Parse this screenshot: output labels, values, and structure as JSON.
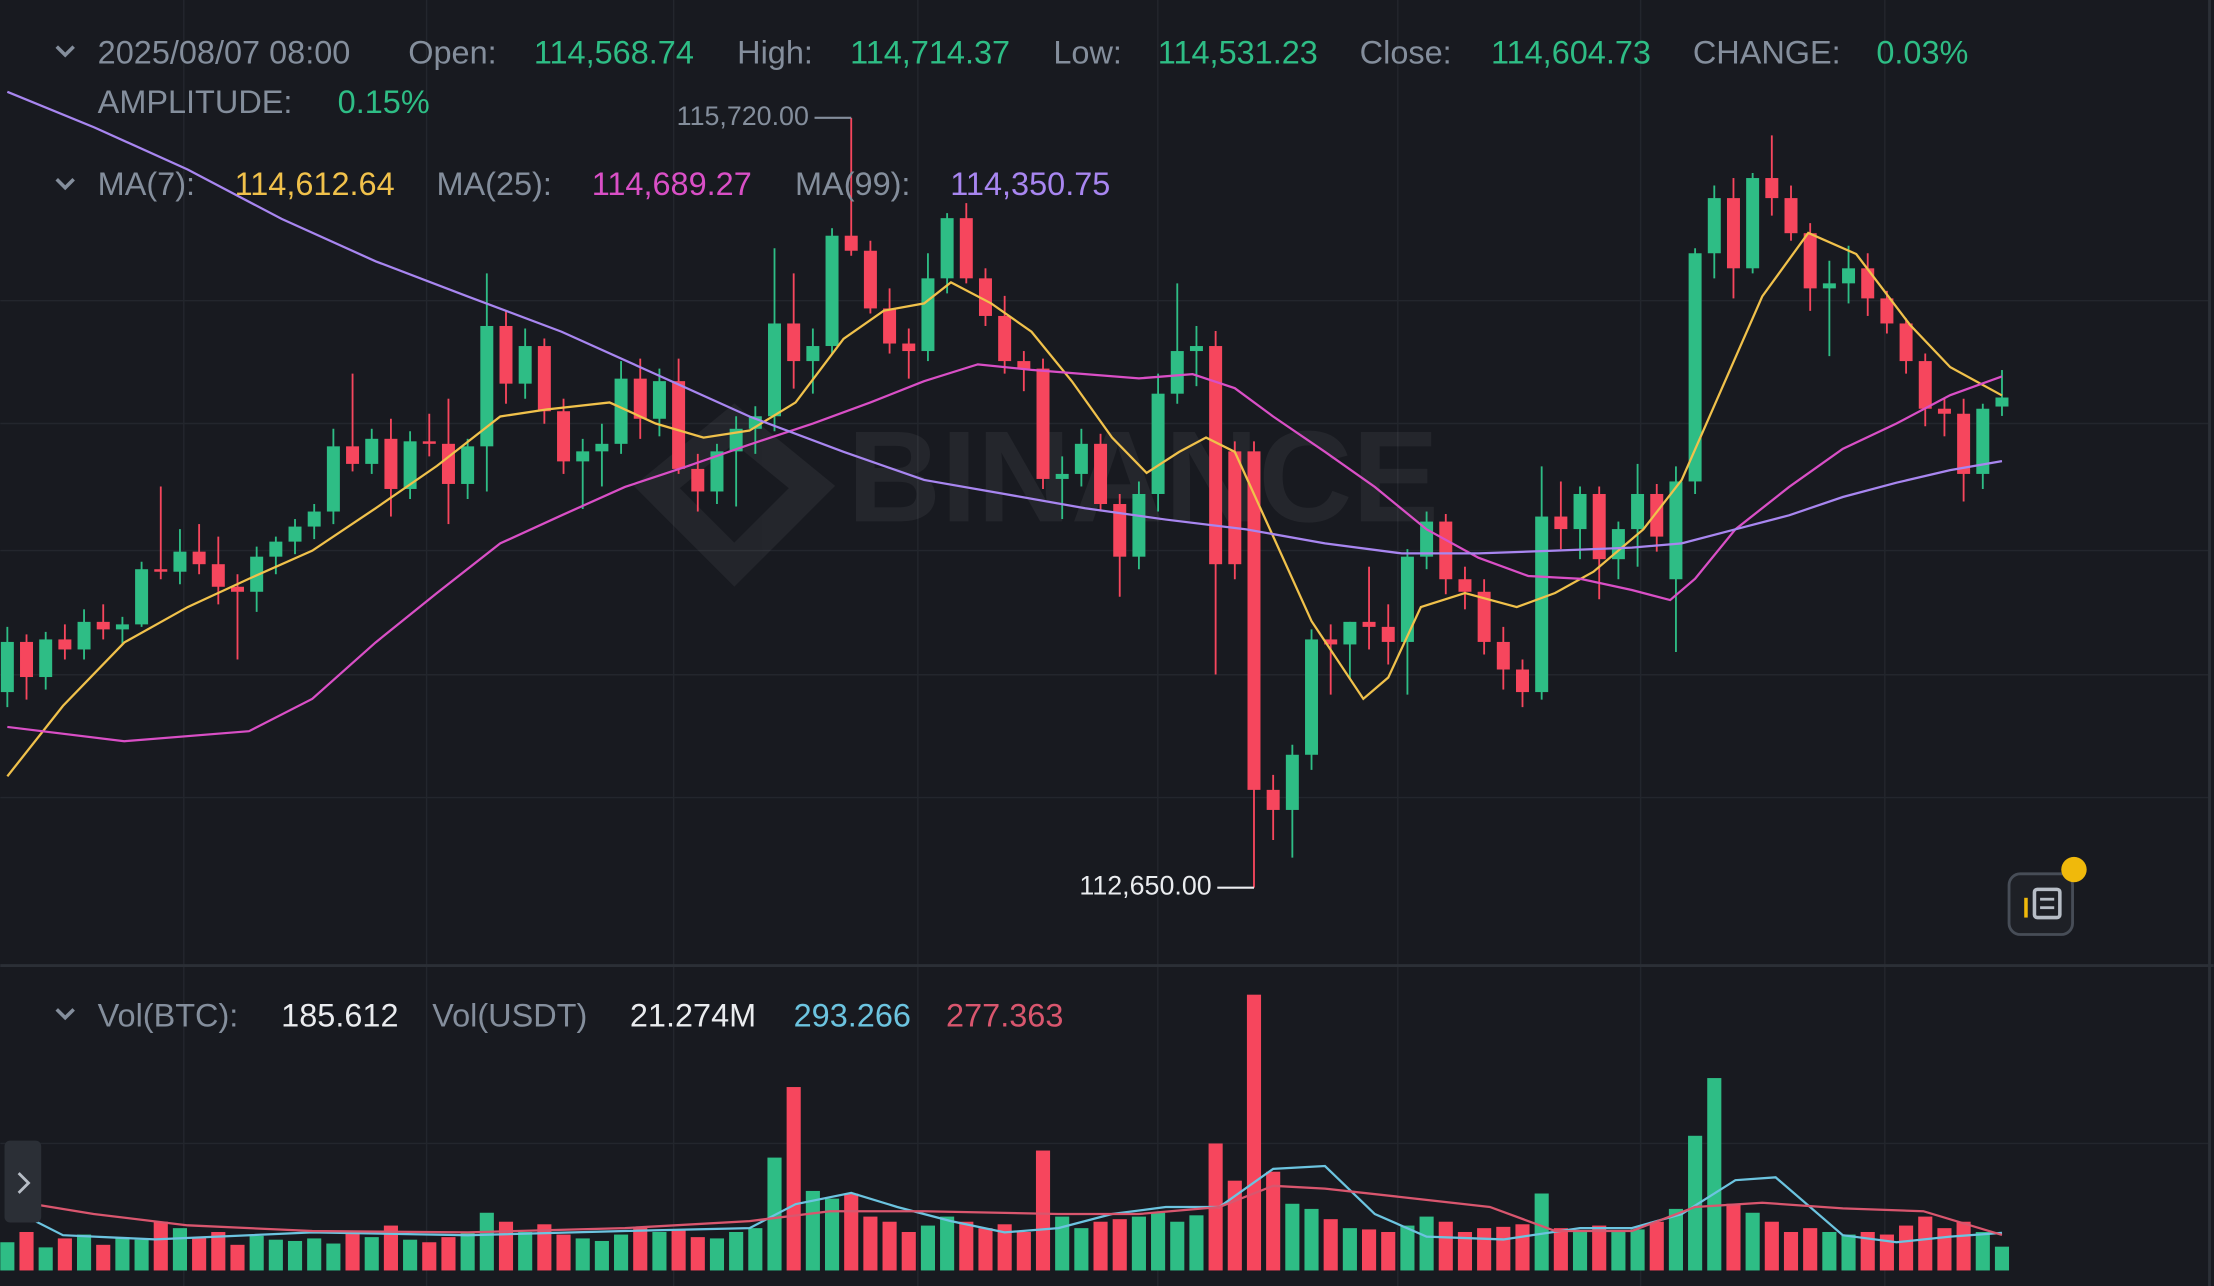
{
  "chart_data": [
    {
      "type": "candlestick",
      "header": {
        "date": "2025/08/07 08:00",
        "fields": [
          {
            "label": "Open:",
            "value": "114,568.74"
          },
          {
            "label": "High:",
            "value": "114,714.37"
          },
          {
            "label": "Low:",
            "value": "114,531.23"
          },
          {
            "label": "Close:",
            "value": "114,604.73"
          },
          {
            "label": "CHANGE:",
            "value": "0.03%"
          }
        ],
        "amplitude": {
          "label": "AMPLITUDE:",
          "value": "0.15%"
        }
      },
      "watermark": "BINANCE",
      "ylim": [
        112345,
        116190
      ],
      "up_color": "#2ebd85",
      "down_color": "#f6465d",
      "ohlc": [
        [
          113430,
          113690,
          113370,
          113630
        ],
        [
          113630,
          113660,
          113400,
          113490
        ],
        [
          113490,
          113670,
          113440,
          113640
        ],
        [
          113640,
          113700,
          113560,
          113600
        ],
        [
          113600,
          113760,
          113560,
          113710
        ],
        [
          113710,
          113780,
          113640,
          113680
        ],
        [
          113680,
          113730,
          113620,
          113700
        ],
        [
          113700,
          113950,
          113690,
          113920
        ],
        [
          113920,
          114250,
          113880,
          113910
        ],
        [
          113910,
          114080,
          113860,
          113990
        ],
        [
          113990,
          114100,
          113900,
          113940
        ],
        [
          113940,
          114050,
          113780,
          113850
        ],
        [
          113850,
          113900,
          113560,
          113830
        ],
        [
          113830,
          114010,
          113750,
          113970
        ],
        [
          113970,
          114050,
          113900,
          114030
        ],
        [
          114030,
          114120,
          113980,
          114090
        ],
        [
          114090,
          114180,
          114040,
          114150
        ],
        [
          114150,
          114480,
          114100,
          114410
        ],
        [
          114410,
          114700,
          114310,
          114340
        ],
        [
          114340,
          114480,
          114300,
          114440
        ],
        [
          114440,
          114520,
          114130,
          114240
        ],
        [
          114240,
          114470,
          114200,
          114430
        ],
        [
          114430,
          114540,
          114370,
          114420
        ],
        [
          114420,
          114600,
          114100,
          114260
        ],
        [
          114260,
          114440,
          114200,
          114410
        ],
        [
          114410,
          115100,
          114230,
          114890
        ],
        [
          114890,
          114950,
          114580,
          114660
        ],
        [
          114660,
          114880,
          114600,
          114810
        ],
        [
          114810,
          114840,
          114500,
          114550
        ],
        [
          114550,
          114600,
          114300,
          114350
        ],
        [
          114350,
          114440,
          114160,
          114390
        ],
        [
          114390,
          114500,
          114250,
          114420
        ],
        [
          114420,
          114750,
          114380,
          114680
        ],
        [
          114680,
          114760,
          114440,
          114520
        ],
        [
          114520,
          114720,
          114450,
          114670
        ],
        [
          114670,
          114760,
          114300,
          114320
        ],
        [
          114320,
          114380,
          114150,
          114230
        ],
        [
          114230,
          114420,
          114180,
          114390
        ],
        [
          114390,
          114530,
          114170,
          114480
        ],
        [
          114480,
          114570,
          114380,
          114530
        ],
        [
          114530,
          115200,
          114470,
          114900
        ],
        [
          114900,
          115100,
          114640,
          114750
        ],
        [
          114750,
          114880,
          114620,
          114810
        ],
        [
          114810,
          115280,
          114780,
          115250
        ],
        [
          115250,
          115720,
          115170,
          115190
        ],
        [
          115190,
          115230,
          114940,
          114960
        ],
        [
          114960,
          115040,
          114780,
          114820
        ],
        [
          114820,
          114880,
          114680,
          114790
        ],
        [
          114790,
          115180,
          114750,
          115080
        ],
        [
          115080,
          115340,
          115020,
          115320
        ],
        [
          115320,
          115380,
          115060,
          115080
        ],
        [
          115080,
          115120,
          114890,
          114930
        ],
        [
          114930,
          115010,
          114700,
          114750
        ],
        [
          114750,
          114790,
          114630,
          114720
        ],
        [
          114720,
          114760,
          114240,
          114280
        ],
        [
          114280,
          114370,
          114120,
          114300
        ],
        [
          114300,
          114480,
          114250,
          114420
        ],
        [
          114420,
          114460,
          114150,
          114180
        ],
        [
          114180,
          114220,
          113810,
          113970
        ],
        [
          113970,
          114270,
          113920,
          114220
        ],
        [
          114220,
          114700,
          114150,
          114620
        ],
        [
          114620,
          115060,
          114580,
          114790
        ],
        [
          114790,
          114890,
          114650,
          114810
        ],
        [
          114810,
          114870,
          113500,
          113940
        ],
        [
          114390,
          114430,
          113880,
          113940
        ],
        [
          114390,
          114430,
          112650,
          113040
        ],
        [
          113040,
          113100,
          112840,
          112960
        ],
        [
          112960,
          113220,
          112770,
          113180
        ],
        [
          113180,
          113680,
          113120,
          113640
        ],
        [
          113640,
          113700,
          113420,
          113620
        ],
        [
          113620,
          113710,
          113480,
          113710
        ],
        [
          113710,
          113930,
          113600,
          113690
        ],
        [
          113690,
          113780,
          113540,
          113630
        ],
        [
          113630,
          114000,
          113420,
          113970
        ],
        [
          113970,
          114150,
          113920,
          114110
        ],
        [
          114110,
          114140,
          113820,
          113880
        ],
        [
          113880,
          113930,
          113760,
          113830
        ],
        [
          113830,
          113880,
          113580,
          113630
        ],
        [
          113630,
          113690,
          113440,
          113520
        ],
        [
          113520,
          113560,
          113370,
          113430
        ],
        [
          113430,
          114330,
          113400,
          114130
        ],
        [
          114130,
          114270,
          114000,
          114080
        ],
        [
          114080,
          114250,
          113960,
          114220
        ],
        [
          114220,
          114250,
          113800,
          113960
        ],
        [
          113960,
          114110,
          113880,
          114080
        ],
        [
          114080,
          114340,
          113930,
          114220
        ],
        [
          114220,
          114260,
          113990,
          114050
        ],
        [
          113880,
          114330,
          113590,
          114270
        ],
        [
          114270,
          115200,
          114220,
          115180
        ],
        [
          115180,
          115450,
          115080,
          115400
        ],
        [
          115400,
          115480,
          115000,
          115120
        ],
        [
          115120,
          115500,
          115100,
          115480
        ],
        [
          115480,
          115650,
          115330,
          115400
        ],
        [
          115400,
          115450,
          115230,
          115260
        ],
        [
          115260,
          115300,
          114950,
          115040
        ],
        [
          115040,
          115150,
          114770,
          115060
        ],
        [
          115060,
          115210,
          114980,
          115120
        ],
        [
          115120,
          115180,
          114930,
          115000
        ],
        [
          115000,
          115030,
          114860,
          114900
        ],
        [
          114900,
          114920,
          114700,
          114750
        ],
        [
          114750,
          114780,
          114490,
          114560
        ],
        [
          114560,
          114600,
          114450,
          114540
        ],
        [
          114540,
          114600,
          114190,
          114300
        ],
        [
          114300,
          114580,
          114240,
          114560
        ],
        [
          114568.74,
          114714.37,
          114531.23,
          114604.73
        ]
      ],
      "marks": [
        {
          "value": 115720,
          "label": "115,720.00"
        },
        {
          "value": 112650,
          "label": "112,650.00"
        }
      ],
      "lines": [
        {
          "name": "MA(7):",
          "last_label": "114,612.64",
          "color": "#f0c14b",
          "x": [
            0,
            2.9,
            6.1,
            9.4,
            12.6,
            15.9,
            19.2,
            22.4,
            25.7,
            28.1,
            31.4,
            33.8,
            36.3,
            38.7,
            41.1,
            43.6,
            45.7,
            47.8,
            49.2,
            51.3,
            53.4,
            55.5,
            57.6,
            59.4,
            61.1,
            62.5,
            64,
            66,
            68,
            70.7,
            72,
            73.7,
            76,
            78.7,
            80.7,
            82.7,
            85.3,
            87.3,
            89.4,
            91.5,
            93.9,
            96.4,
            99.2,
            101.3,
            104
          ],
          "values": [
            113094,
            113375,
            113628,
            113769,
            113882,
            113994,
            114163,
            114332,
            114529,
            114557,
            114585,
            114501,
            114445,
            114473,
            114585,
            114839,
            114951,
            114980,
            115064,
            114980,
            114867,
            114670,
            114445,
            114304,
            114388,
            114445,
            114388,
            114051,
            113713,
            113403,
            113488,
            113769,
            113825,
            113769,
            113825,
            113910,
            114079,
            114276,
            114642,
            115008,
            115261,
            115177,
            114895,
            114726,
            114613
          ]
        },
        {
          "name": "MA(25):",
          "last_label": "114,689.27",
          "color": "#d94fc6",
          "x": [
            0,
            6.1,
            12.6,
            15.9,
            19.2,
            22.4,
            25.7,
            28.9,
            32.2,
            35.5,
            38.7,
            42,
            45,
            47.8,
            50.6,
            53.4,
            56.2,
            59,
            61.8,
            64,
            66,
            68.7,
            71.3,
            74,
            76.7,
            79.3,
            82,
            84.7,
            86.7,
            88,
            90.1,
            92.9,
            95.7,
            98.5,
            101.3,
            104
          ],
          "values": [
            113291,
            113234,
            113274,
            113403,
            113628,
            113825,
            114023,
            114135,
            114248,
            114332,
            114417,
            114501,
            114585,
            114670,
            114737,
            114715,
            114698,
            114681,
            114698,
            114642,
            114529,
            114388,
            114248,
            114079,
            113966,
            113893,
            113882,
            113837,
            113797,
            113882,
            114079,
            114248,
            114400,
            114501,
            114614,
            114689
          ]
        },
        {
          "name": "MA(99):",
          "last_label": "114,350.75",
          "color": "#a886f0",
          "x": [
            0,
            4.5,
            9.4,
            14.3,
            19.2,
            24,
            28.9,
            33.8,
            38.7,
            43.6,
            47.8,
            52,
            56.2,
            60.4,
            64.6,
            68.7,
            72.7,
            76.7,
            80.7,
            84.7,
            87.3,
            90.1,
            92.9,
            95.7,
            98.5,
            101.3,
            104
          ],
          "values": [
            115824,
            115683,
            115514,
            115317,
            115148,
            115008,
            114867,
            114698,
            114529,
            114388,
            114276,
            114220,
            114163,
            114118,
            114079,
            114023,
            113983,
            113983,
            113994,
            114006,
            114023,
            114079,
            114135,
            114208,
            114265,
            114315,
            114351
          ]
        }
      ]
    },
    {
      "type": "volume",
      "header": {
        "label": "Vol(BTC):",
        "value": "185.612",
        "label2": "Vol(USDT)",
        "value2": "21.274M"
      },
      "ylim": [
        0,
        2300
      ],
      "values": [
        220,
        300,
        180,
        250,
        280,
        200,
        260,
        240,
        380,
        330,
        260,
        300,
        200,
        270,
        240,
        230,
        250,
        210,
        290,
        260,
        350,
        240,
        220,
        260,
        300,
        450,
        380,
        300,
        360,
        280,
        250,
        230,
        280,
        340,
        300,
        320,
        260,
        250,
        300,
        330,
        880,
        1430,
        620,
        560,
        600,
        420,
        380,
        300,
        350,
        420,
        380,
        330,
        360,
        300,
        935,
        420,
        330,
        380,
        400,
        420,
        450,
        380,
        430,
        990,
        700,
        2150,
        770,
        520,
        480,
        400,
        330,
        320,
        300,
        350,
        420,
        380,
        300,
        330,
        340,
        360,
        600,
        330,
        300,
        350,
        300,
        320,
        380,
        480,
        1050,
        1500,
        520,
        450,
        380,
        300,
        330,
        300,
        280,
        300,
        280,
        350,
        420,
        330,
        380,
        300,
        185.612
      ],
      "lines": [
        {
          "last_label": "293.266",
          "color": "#6cc4e0",
          "x": [
            0,
            2.9,
            7.7,
            15.9,
            24,
            32.2,
            38.7,
            41.1,
            44,
            46.4,
            49.2,
            52,
            54.8,
            57.6,
            60.4,
            63.2,
            66,
            68.7,
            71.3,
            74,
            78,
            82,
            84.7,
            87.3,
            90.1,
            92.2,
            95.7,
            98.5,
            101.3,
            104
          ],
          "values": [
            495,
            275,
            242,
            297,
            275,
            308,
            330,
            517,
            605,
            495,
            385,
            297,
            330,
            440,
            495,
            495,
            792,
            814,
            440,
            264,
            242,
            330,
            330,
            440,
            704,
            726,
            275,
            220,
            264,
            293
          ]
        },
        {
          "last_label": "277.363",
          "color": "#d9566e",
          "x": [
            0,
            4.5,
            9.4,
            15.9,
            24,
            32.2,
            38.7,
            42.9,
            47.8,
            54.8,
            59,
            63.2,
            66,
            68.7,
            72.7,
            77.3,
            80.7,
            84.7,
            88,
            91.5,
            95.7,
            99.9,
            104
          ],
          "values": [
            550,
            440,
            352,
            308,
            297,
            330,
            385,
            462,
            462,
            440,
            440,
            495,
            660,
            638,
            572,
            495,
            308,
            308,
            495,
            528,
            484,
            462,
            277
          ]
        }
      ]
    }
  ]
}
